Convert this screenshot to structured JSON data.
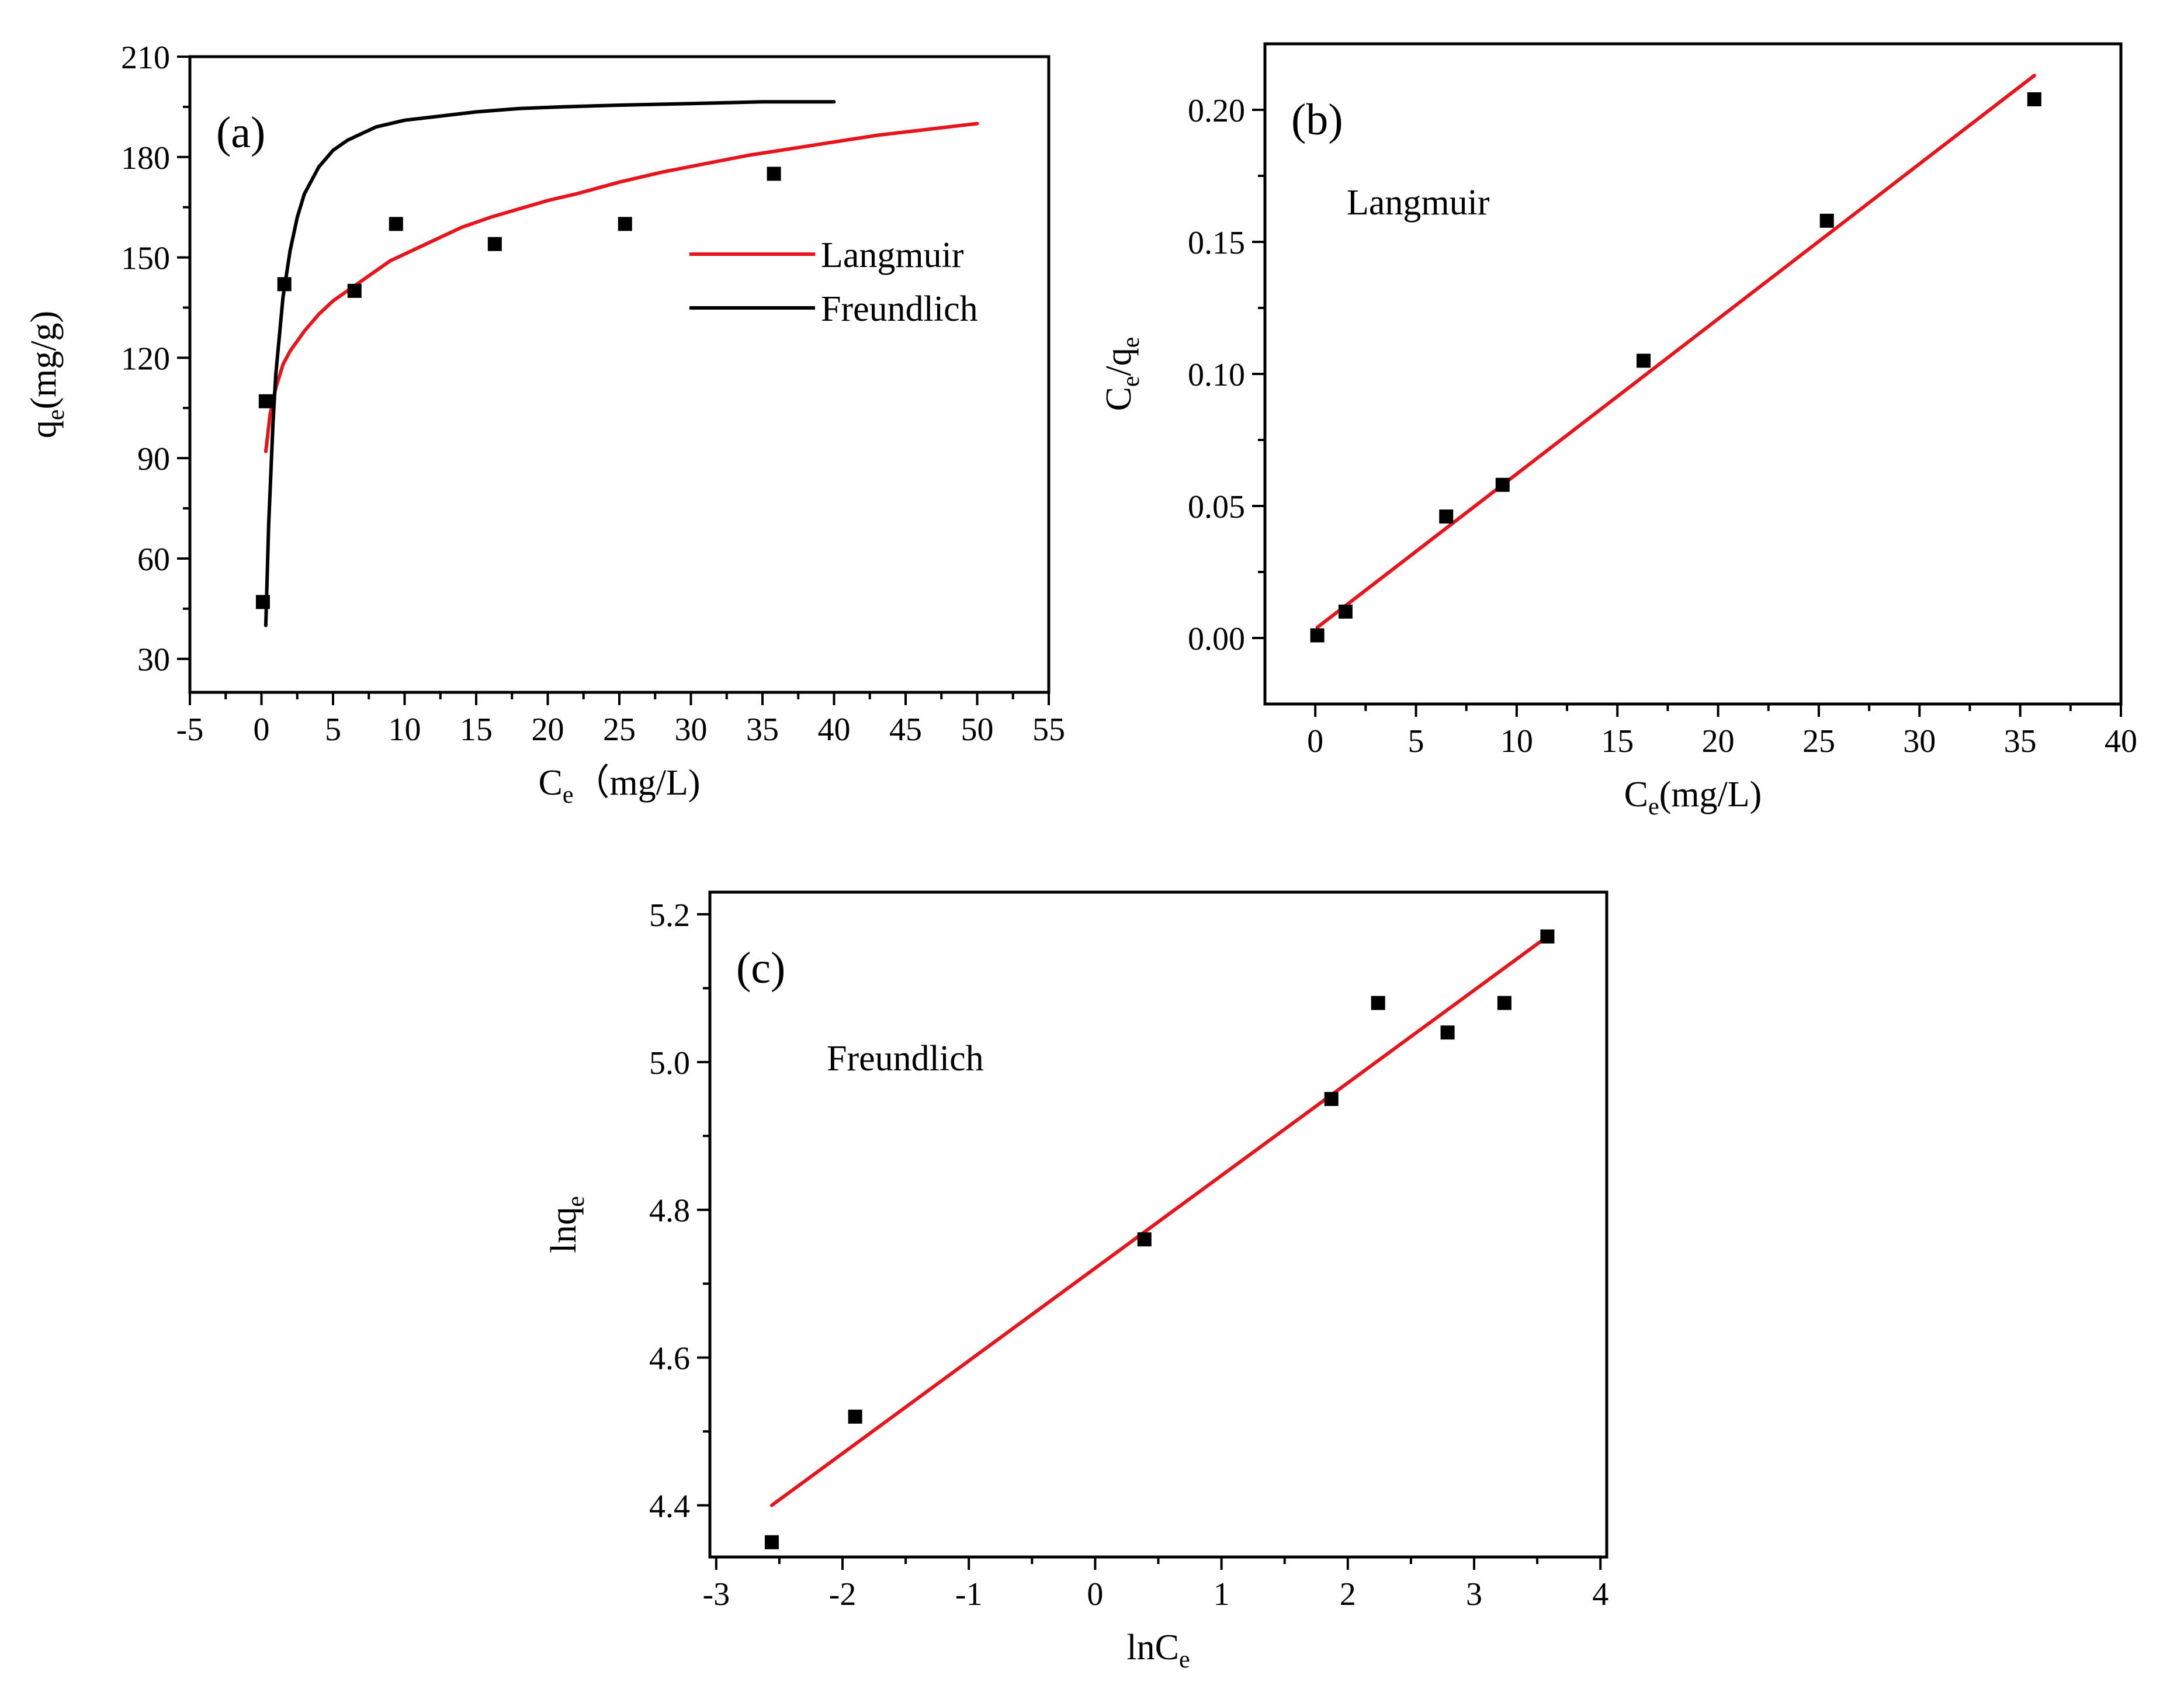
{
  "colors": {
    "fit_red": "#e8141b",
    "curve_black": "#000000",
    "axis": "#000000",
    "marker": "#000000"
  },
  "chart_data": [
    {
      "type": "scatter",
      "panel_label": "(a)",
      "xlabel": {
        "main": "C",
        "sub": "e",
        "rest": "（mg/L)"
      },
      "ylabel": {
        "main": "q",
        "sub": "e",
        "rest": "(mg/g)"
      },
      "xlim": [
        -5,
        55
      ],
      "ylim": [
        20,
        210
      ],
      "xticks": [
        -5,
        0,
        5,
        10,
        15,
        20,
        25,
        30,
        35,
        40,
        45,
        50,
        55
      ],
      "yticks": [
        30,
        60,
        90,
        120,
        150,
        180,
        210
      ],
      "legend": {
        "position": "center-right",
        "entries": [
          "Langmuir",
          "Freundlich"
        ]
      },
      "points": {
        "x": [
          0.1,
          0.3,
          1.6,
          6.5,
          9.4,
          16.3,
          25.4,
          35.8
        ],
        "y": [
          47,
          107,
          142,
          140,
          160,
          154,
          160,
          175
        ]
      },
      "series": [
        {
          "name": "Langmuir",
          "color": "#e8141b",
          "x": [
            0.3,
            0.6,
            1,
            1.5,
            2,
            3,
            4,
            5,
            6,
            7,
            8,
            9,
            10,
            12,
            14,
            16,
            18,
            20,
            22,
            25,
            28,
            31,
            34,
            37,
            40,
            43,
            46,
            50
          ],
          "y": [
            92,
            103,
            111,
            118,
            122,
            128,
            133,
            137,
            140,
            143,
            146,
            149,
            151,
            155,
            159,
            162,
            164.5,
            167,
            169,
            172.5,
            175.5,
            178,
            180.5,
            182.5,
            184.5,
            186.5,
            188,
            190
          ]
        },
        {
          "name": "Freundlich",
          "color": "#000000",
          "x": [
            0.3,
            0.5,
            0.8,
            1,
            1.5,
            2,
            2.5,
            3,
            4,
            5,
            6,
            7,
            8,
            10,
            12,
            15,
            18,
            21,
            25,
            30,
            35,
            40
          ],
          "y": [
            40,
            70,
            100,
            115,
            138,
            152,
            162,
            169,
            177,
            182,
            185,
            187,
            189,
            191,
            192,
            193.5,
            194.5,
            195,
            195.5,
            196,
            196.5,
            196.5
          ]
        }
      ]
    },
    {
      "type": "scatter",
      "panel_label": "(b)",
      "annotation": "Langmuir",
      "xlabel": {
        "main": "C",
        "sub": "e",
        "rest": "(mg/L)"
      },
      "ylabel": {
        "main": "C",
        "sub": "e",
        "rest": "/q",
        "sub2": "e"
      },
      "xlim": [
        -2.5,
        40
      ],
      "ylim": [
        -0.025,
        0.225
      ],
      "xticks": [
        0,
        5,
        10,
        15,
        20,
        25,
        30,
        35,
        40
      ],
      "yticks": [
        0.0,
        0.05,
        0.1,
        0.15,
        0.2
      ],
      "ytick_labels": [
        "0.00",
        "0.05",
        "0.10",
        "0.15",
        "0.20"
      ],
      "points": {
        "x": [
          0.1,
          1.5,
          6.5,
          9.3,
          16.3,
          25.4,
          35.7
        ],
        "y": [
          0.001,
          0.01,
          0.046,
          0.058,
          0.105,
          0.158,
          0.204
        ]
      },
      "series": [
        {
          "name": "Langmuir",
          "color": "#e8141b",
          "x": [
            0.1,
            35.7
          ],
          "y": [
            0.004,
            0.213
          ]
        }
      ]
    },
    {
      "type": "scatter",
      "panel_label": "(c)",
      "annotation": "Freundlich",
      "xlabel": {
        "main": "lnC",
        "sub": "e",
        "rest": ""
      },
      "ylabel": {
        "main": "lnq",
        "sub": "e",
        "rest": ""
      },
      "xlim": [
        -3.05,
        4.05
      ],
      "ylim": [
        4.33,
        5.23
      ],
      "xticks": [
        -3,
        -2,
        -1,
        0,
        1,
        2,
        3,
        4
      ],
      "yticks": [
        4.4,
        4.6,
        4.8,
        5.0,
        5.2
      ],
      "ytick_labels": [
        "4.4",
        "4.6",
        "4.8",
        "5.0",
        "5.2"
      ],
      "points": {
        "x": [
          -2.56,
          -1.9,
          0.39,
          1.87,
          2.24,
          2.79,
          3.24,
          3.58
        ],
        "y": [
          4.35,
          4.52,
          4.76,
          4.95,
          5.08,
          5.04,
          5.08,
          5.17
        ]
      },
      "series": [
        {
          "name": "Freundlich",
          "color": "#e8141b",
          "x": [
            -2.56,
            3.58
          ],
          "y": [
            4.4,
            5.17
          ]
        }
      ]
    }
  ]
}
